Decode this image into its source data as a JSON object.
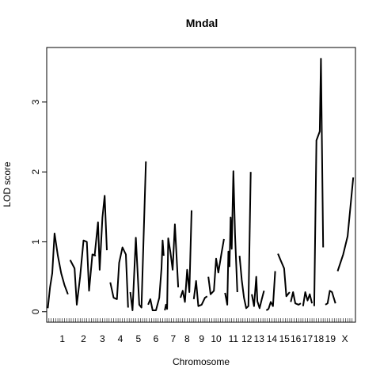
{
  "chart_data": {
    "type": "line",
    "title": "Mndal",
    "xlabel": "Chromosome",
    "ylabel": "LOD score",
    "ylim": [
      -0.15,
      3.78
    ],
    "yticks": [
      0,
      1,
      2,
      3
    ],
    "grid": false,
    "legend": "none",
    "chromosomes": [
      {
        "label": "1",
        "start": 0,
        "end": 52,
        "points": [
          [
            0,
            0.05
          ],
          [
            4,
            0.35
          ],
          [
            7,
            0.5
          ],
          [
            8,
            0.55
          ],
          [
            12,
            1.12
          ],
          [
            18,
            0.8
          ],
          [
            24,
            0.55
          ],
          [
            30,
            0.38
          ],
          [
            36,
            0.25
          ]
        ]
      },
      {
        "label": "2",
        "start": 40,
        "end": 88,
        "points": [
          [
            40,
            0.74
          ],
          [
            48,
            0.62
          ],
          [
            52,
            0.1
          ],
          [
            58,
            0.5
          ],
          [
            64,
            1.02
          ],
          [
            70,
            1.0
          ],
          [
            74,
            0.3
          ],
          [
            80,
            0.82
          ],
          [
            86,
            0.8
          ]
        ]
      },
      {
        "label": "3",
        "start": 84,
        "end": 112,
        "points": [
          [
            84,
            0.8
          ],
          [
            90,
            1.28
          ],
          [
            93,
            0.6
          ],
          [
            98,
            1.35
          ],
          [
            102,
            1.66
          ],
          [
            106,
            0.88
          ]
        ]
      },
      {
        "label": "4",
        "start": 112,
        "end": 148,
        "points": [
          [
            112,
            0.42
          ],
          [
            118,
            0.2
          ],
          [
            124,
            0.18
          ],
          [
            128,
            0.7
          ],
          [
            134,
            0.92
          ],
          [
            140,
            0.82
          ],
          [
            144,
            0.06
          ]
        ]
      },
      {
        "label": "5",
        "start": 147,
        "end": 178,
        "points": [
          [
            148,
            0.28
          ],
          [
            152,
            0.02
          ],
          [
            158,
            1.06
          ],
          [
            164,
            0.1
          ],
          [
            168,
            0.06
          ],
          [
            176,
            2.15
          ]
        ]
      },
      {
        "label": "6",
        "start": 178,
        "end": 210,
        "points": [
          [
            180,
            0.1
          ],
          [
            184,
            0.18
          ],
          [
            188,
            0.02
          ],
          [
            194,
            0.02
          ],
          [
            200,
            0.2
          ],
          [
            204,
            0.62
          ],
          [
            206,
            1.02
          ],
          [
            208,
            0.8
          ]
        ]
      },
      {
        "label": "7",
        "start": 210,
        "end": 240,
        "points": [
          [
            210,
            0.02
          ],
          [
            212,
            0.1
          ],
          [
            214,
            0.04
          ],
          [
            216,
            1.05
          ],
          [
            220,
            0.85
          ],
          [
            224,
            0.6
          ],
          [
            228,
            1.25
          ],
          [
            234,
            0.35
          ]
        ]
      },
      {
        "label": "8",
        "start": 238,
        "end": 262,
        "points": [
          [
            238,
            0.2
          ],
          [
            242,
            0.3
          ],
          [
            246,
            0.14
          ],
          [
            250,
            0.6
          ],
          [
            254,
            0.28
          ],
          [
            258,
            1.45
          ]
        ]
      },
      {
        "label": "9",
        "start": 262,
        "end": 290,
        "points": [
          [
            262,
            0.18
          ],
          [
            266,
            0.44
          ],
          [
            270,
            0.08
          ],
          [
            276,
            0.1
          ],
          [
            282,
            0.2
          ],
          [
            286,
            0.22
          ]
        ]
      },
      {
        "label": "10",
        "start": 288,
        "end": 316,
        "points": [
          [
            288,
            0.5
          ],
          [
            292,
            0.25
          ],
          [
            298,
            0.3
          ],
          [
            302,
            0.76
          ],
          [
            306,
            0.56
          ],
          [
            312,
            0.85
          ],
          [
            316,
            1.04
          ]
        ]
      },
      {
        "label": "11",
        "start": 318,
        "end": 348,
        "points": [
          [
            318,
            0.27
          ],
          [
            322,
            0.1
          ],
          [
            324,
            0.86
          ],
          [
            326,
            0.65
          ],
          [
            328,
            1.35
          ],
          [
            330,
            0.9
          ],
          [
            333,
            2.01
          ],
          [
            336,
            1.1
          ],
          [
            340,
            0.28
          ]
        ]
      },
      {
        "label": "12",
        "start": 344,
        "end": 370,
        "points": [
          [
            344,
            0.8
          ],
          [
            348,
            0.45
          ],
          [
            352,
            0.2
          ],
          [
            356,
            0.05
          ],
          [
            360,
            0.08
          ],
          [
            364,
            2.0
          ]
        ]
      },
      {
        "label": "13",
        "start": 366,
        "end": 392,
        "points": [
          [
            366,
            0.25
          ],
          [
            370,
            0.08
          ],
          [
            374,
            0.5
          ],
          [
            376,
            0.15
          ],
          [
            380,
            0.05
          ],
          [
            384,
            0.18
          ],
          [
            388,
            0.3
          ]
        ]
      },
      {
        "label": "14",
        "start": 390,
        "end": 414,
        "points": [
          [
            392,
            0.02
          ],
          [
            396,
            0.04
          ],
          [
            400,
            0.14
          ],
          [
            404,
            0.08
          ],
          [
            408,
            0.58
          ]
        ]
      },
      {
        "label": "15",
        "start": 413,
        "end": 436,
        "points": [
          [
            413,
            0.83
          ],
          [
            418,
            0.73
          ],
          [
            424,
            0.62
          ],
          [
            428,
            0.22
          ],
          [
            434,
            0.28
          ]
        ]
      },
      {
        "label": "16",
        "start": 434,
        "end": 456,
        "points": [
          [
            436,
            0.14
          ],
          [
            440,
            0.28
          ],
          [
            444,
            0.12
          ],
          [
            450,
            0.1
          ],
          [
            454,
            0.12
          ]
        ]
      },
      {
        "label": "17",
        "start": 456,
        "end": 476,
        "points": [
          [
            458,
            0.08
          ],
          [
            462,
            0.28
          ],
          [
            466,
            0.16
          ],
          [
            470,
            0.25
          ],
          [
            474,
            0.12
          ]
        ]
      },
      {
        "label": "18",
        "start": 476,
        "end": 496,
        "points": [
          [
            478,
            0.08
          ],
          [
            482,
            2.45
          ],
          [
            488,
            2.58
          ],
          [
            490,
            3.62
          ],
          [
            494,
            0.92
          ]
        ]
      },
      {
        "label": "19",
        "start": 496,
        "end": 518,
        "points": [
          [
            498,
            0.1
          ],
          [
            502,
            0.12
          ],
          [
            506,
            0.3
          ],
          [
            510,
            0.28
          ],
          [
            516,
            0.12
          ]
        ]
      },
      {
        "label": "X",
        "start": 518,
        "end": 548,
        "points": [
          [
            520,
            0.58
          ],
          [
            530,
            0.82
          ],
          [
            538,
            1.08
          ],
          [
            548,
            1.92
          ]
        ]
      }
    ],
    "rug_positions": [
      2,
      6,
      10,
      14,
      18,
      22,
      26,
      30,
      34,
      38,
      42,
      46,
      50,
      54,
      58,
      62,
      66,
      70,
      74,
      78,
      82,
      86,
      90,
      94,
      98,
      102,
      106,
      110,
      114,
      118,
      122,
      126,
      130,
      134,
      138,
      142,
      146,
      150,
      154,
      158,
      162,
      166,
      170,
      174,
      178,
      182,
      186,
      190,
      194,
      198,
      202,
      206,
      210,
      214,
      218,
      222,
      226,
      230,
      234,
      238,
      242,
      246,
      250,
      254,
      258,
      262,
      266,
      270,
      274,
      278,
      282,
      286,
      290,
      294,
      298,
      302,
      306,
      310,
      314,
      318,
      322,
      326,
      330,
      334,
      338,
      342,
      346,
      350,
      354,
      358,
      362,
      366,
      370,
      374,
      378,
      382,
      386,
      390,
      394,
      398,
      402,
      406,
      410,
      414,
      418,
      422,
      426,
      430,
      434,
      438,
      442,
      446,
      450,
      454,
      458,
      462,
      466,
      470,
      474,
      478,
      482,
      486,
      490,
      494,
      498,
      502,
      506,
      510,
      514,
      518,
      522,
      526,
      530,
      534,
      538,
      542,
      546
    ],
    "xlim": [
      -2,
      552
    ]
  }
}
